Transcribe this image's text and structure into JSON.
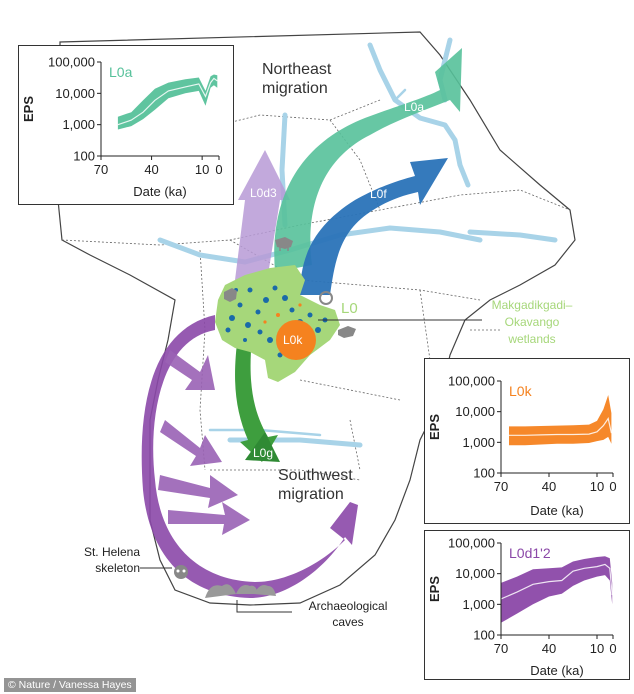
{
  "colors": {
    "L0a": "#56c19a",
    "L0f": "#2a73b8",
    "L0d3": "#b79ad6",
    "L0k": "#f5821f",
    "L0g": "#3e9e3e",
    "L0d1_2": "#8b48a8",
    "L0": "#8fc96b",
    "wetland": "#a6d77a",
    "river": "#a8d3e8"
  },
  "map": {
    "northeast_label_line1": "Northeast",
    "northeast_label_line2": "migration",
    "southwest_label_line1": "Southwest",
    "southwest_label_line2": "migration",
    "arrow_L0a": "L0a",
    "arrow_L0f": "L0f",
    "arrow_L0d3": "L0d3",
    "arrow_L0g": "L0g",
    "arrow_L0d1_2": "L0d1'2",
    "homeland_L0k": "L0k",
    "homeland_L0": "L0",
    "wetlands_line1": "Makgadikgadi–",
    "wetlands_line2": "Okavango",
    "wetlands_line3": "wetlands",
    "st_helena_line1": "St. Helena",
    "st_helena_line2": "skeleton",
    "caves_line1": "Archaeological",
    "caves_line2": "caves",
    "icons": [
      "skull-icon",
      "cave-icon",
      "animal-icon"
    ]
  },
  "credit": "© Nature / Vanessa Hayes",
  "chart_data": [
    {
      "type": "area",
      "series_name": "L0a",
      "ylabel": "EPS",
      "xlabel": "Date (ka)",
      "x_ticks": [
        "70",
        "40",
        "10",
        "0"
      ],
      "y_ticks": [
        "100,000",
        "10,000",
        "1,000",
        "100"
      ],
      "xlim": [
        70,
        0
      ],
      "ylim": [
        100,
        100000
      ],
      "yscale": "log",
      "color": "#56c19a",
      "x": [
        60,
        52,
        45,
        38,
        30,
        20,
        12,
        8,
        5,
        3,
        1
      ],
      "median": [
        1000,
        1400,
        2500,
        6000,
        12000,
        16000,
        20000,
        8000,
        22000,
        30000,
        25000
      ],
      "lower": [
        700,
        900,
        1500,
        3000,
        7000,
        10000,
        12000,
        4000,
        15000,
        18000,
        15000
      ],
      "upper": [
        1800,
        2500,
        6000,
        14000,
        22000,
        28000,
        32000,
        12000,
        35000,
        40000,
        38000
      ]
    },
    {
      "type": "area",
      "series_name": "L0k",
      "ylabel": "EPS",
      "xlabel": "Date (ka)",
      "x_ticks": [
        "70",
        "40",
        "10",
        "0"
      ],
      "y_ticks": [
        "100,000",
        "10,000",
        "1,000",
        "100"
      ],
      "xlim": [
        70,
        0
      ],
      "ylim": [
        100,
        100000
      ],
      "yscale": "log",
      "color": "#f5821f",
      "x": [
        65,
        55,
        45,
        35,
        25,
        15,
        10,
        6,
        3,
        1
      ],
      "median": [
        1700,
        1700,
        1750,
        1800,
        1800,
        1850,
        2200,
        3500,
        6000,
        2000
      ],
      "lower": [
        800,
        800,
        850,
        900,
        900,
        950,
        1100,
        1200,
        1500,
        900
      ],
      "upper": [
        3300,
        3300,
        3400,
        3500,
        3600,
        3800,
        5000,
        12000,
        35000,
        9000
      ]
    },
    {
      "type": "area",
      "series_name": "L0d1'2",
      "ylabel": "EPS",
      "xlabel": "Date (ka)",
      "x_ticks": [
        "70",
        "40",
        "10",
        "0"
      ],
      "y_ticks": [
        "100,000",
        "10,000",
        "1,000",
        "100"
      ],
      "xlim": [
        70,
        0
      ],
      "ylim": [
        100,
        100000
      ],
      "yscale": "log",
      "color": "#8b48a8",
      "x": [
        70,
        60,
        50,
        40,
        32,
        25,
        18,
        10,
        5,
        2,
        0.5
      ],
      "median": [
        1500,
        2500,
        4500,
        5500,
        6000,
        12000,
        15000,
        17000,
        20000,
        15000,
        2000
      ],
      "lower": [
        250,
        500,
        1000,
        1800,
        2200,
        4000,
        6000,
        8000,
        9000,
        6000,
        1000
      ],
      "upper": [
        5000,
        8000,
        14000,
        15000,
        16000,
        25000,
        30000,
        35000,
        37000,
        32000,
        5000
      ]
    }
  ]
}
